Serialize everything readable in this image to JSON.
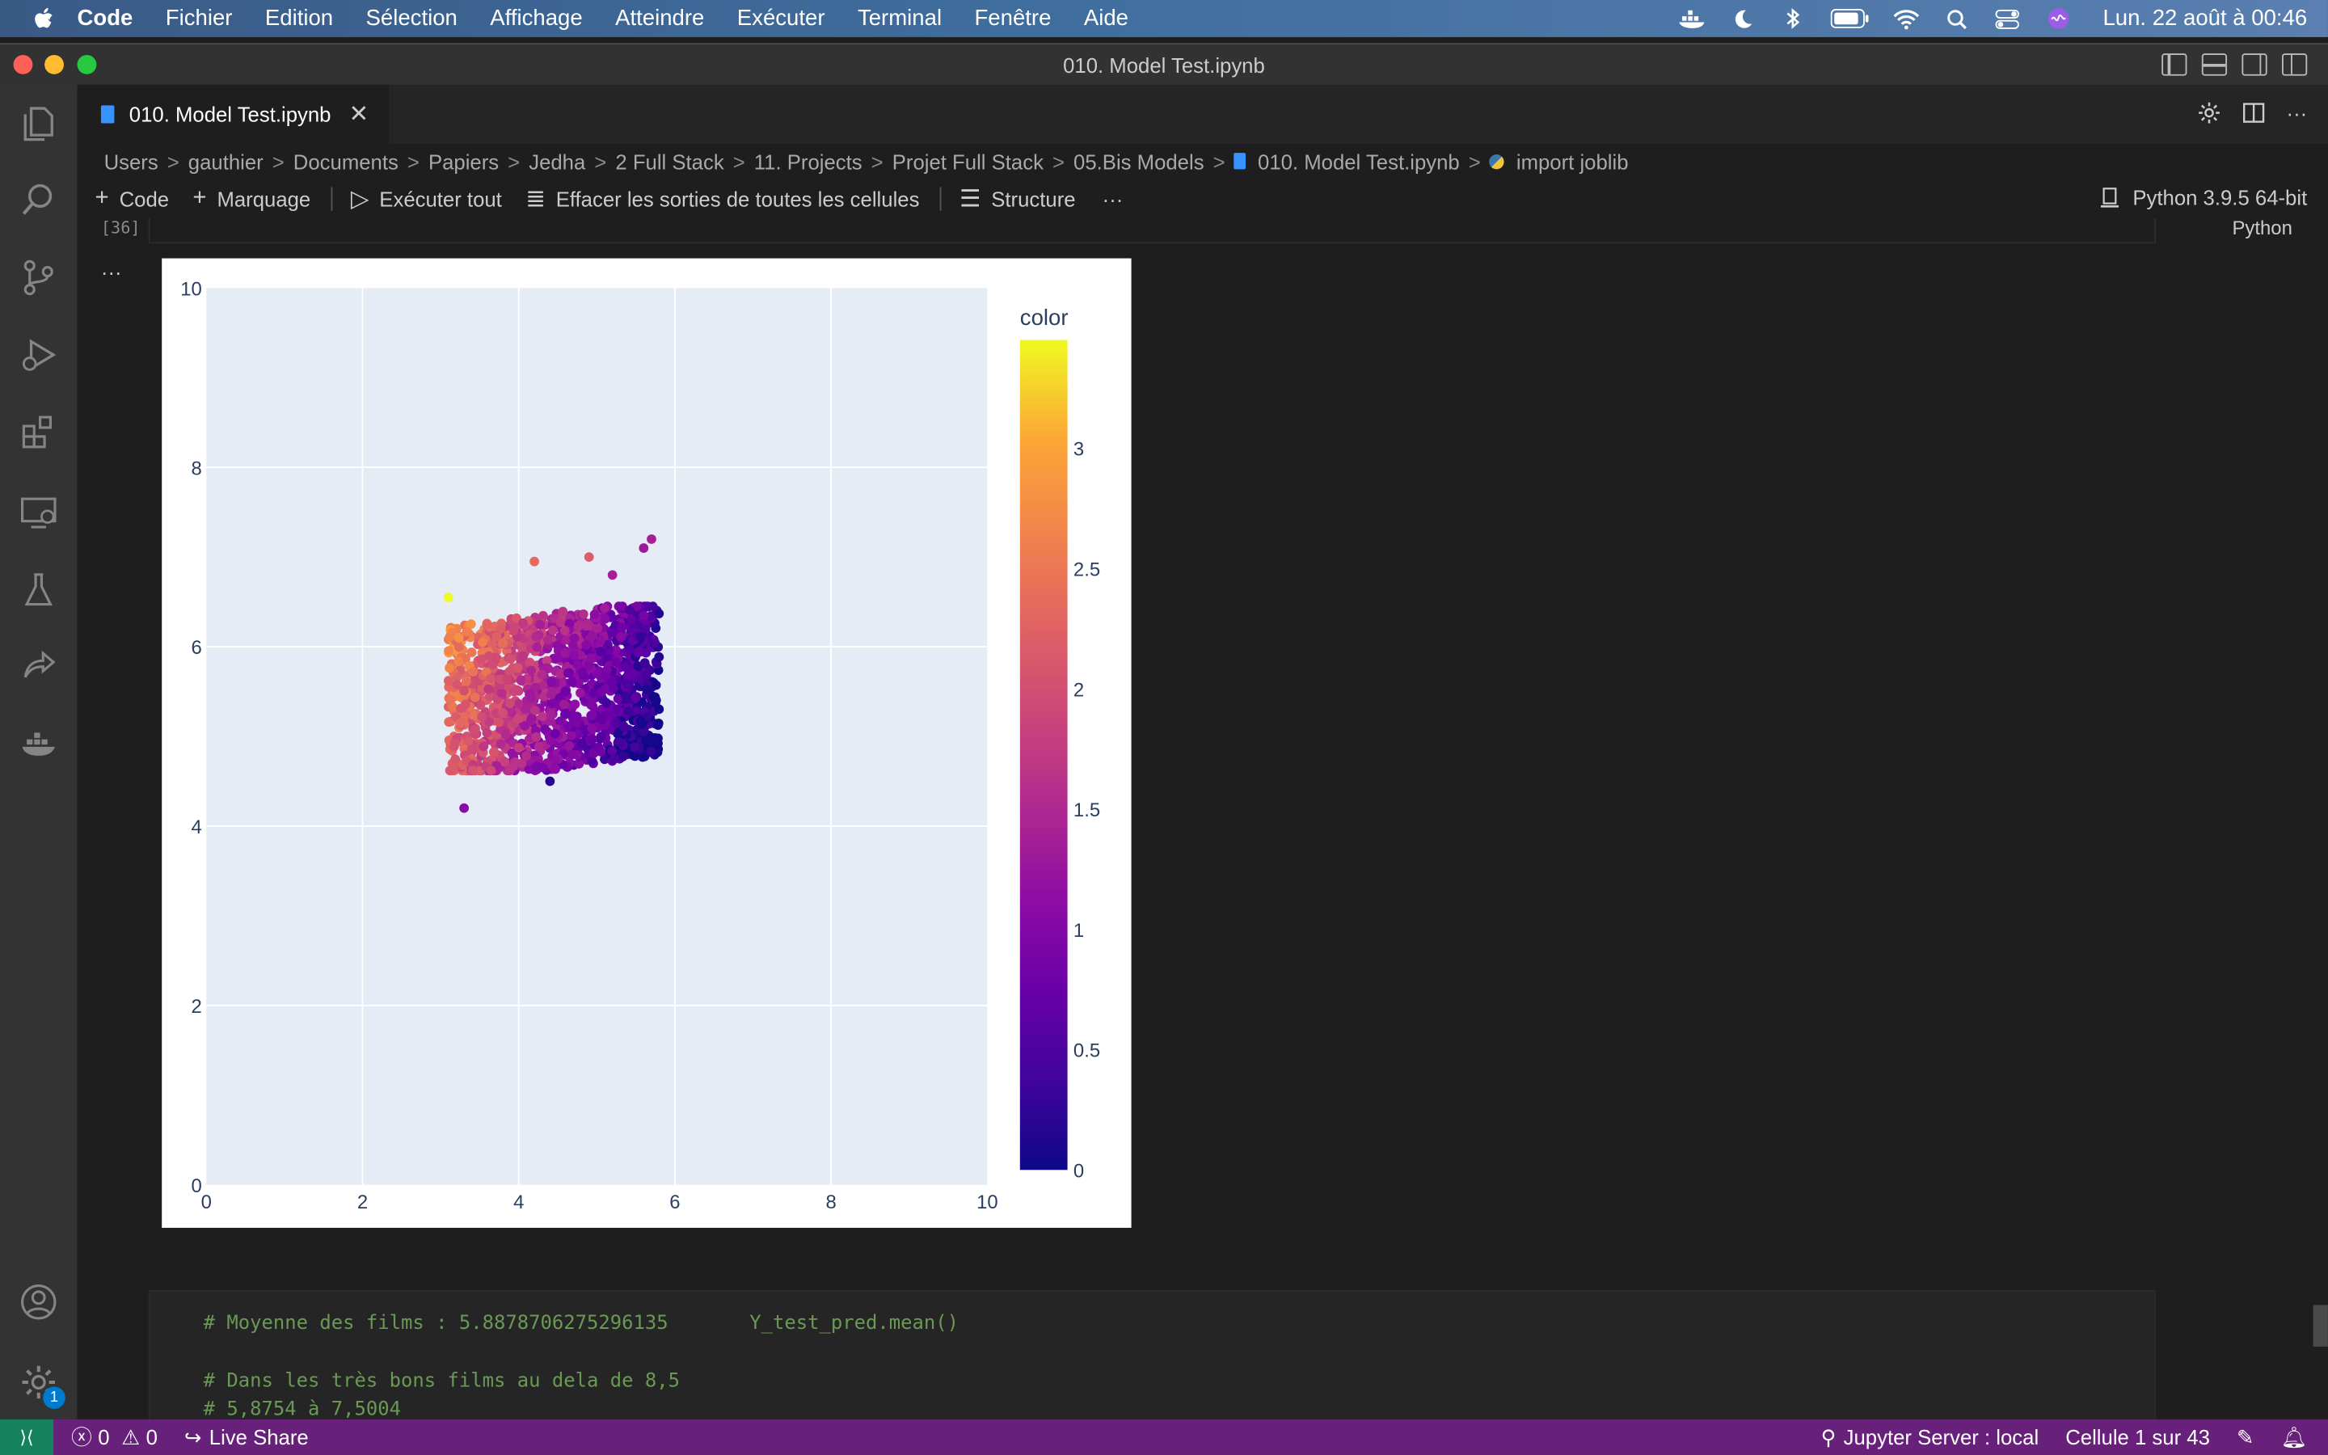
{
  "menubar": {
    "app": "Code",
    "items": [
      "Fichier",
      "Edition",
      "Sélection",
      "Affichage",
      "Atteindre",
      "Exécuter",
      "Terminal",
      "Fenêtre",
      "Aide"
    ],
    "clock": "Lun. 22 août à  00:46"
  },
  "window": {
    "title": "010. Model Test.ipynb"
  },
  "tab": {
    "label": "010. Model Test.ipynb"
  },
  "breadcrumbs": [
    "Users",
    "gauthier",
    "Documents",
    "Papiers",
    "Jedha",
    "2 Full Stack",
    "11. Projects",
    "Projet Full Stack",
    "05.Bis Models",
    "010. Model Test.ipynb",
    "import joblib"
  ],
  "toolbar": {
    "code": "Code",
    "markdown": "Marquage",
    "run_all": "Exécuter tout",
    "clear_outputs": "Effacer les sorties de toutes les cellules",
    "outline": "Structure",
    "more": "···",
    "kernel": "Python 3.9.5 64-bit"
  },
  "cell": {
    "exec_count": "[36]",
    "language": "Python",
    "output_menu": "···"
  },
  "code_lines": [
    "# Moyenne des films : 5.8878706275296135       Y_test_pred.mean()",
    "",
    "# Dans les très bons films au dela de 8,5",
    "# 5,8754 à 7,5004"
  ],
  "statusbar": {
    "errors": "0",
    "warnings": "0",
    "live_share": "Live Share",
    "jupyter": "Jupyter Server : local",
    "cell_position": "Cellule 1 sur 43"
  },
  "activity_badge": "1",
  "chart_data": {
    "type": "scatter",
    "title": "",
    "xlabel": "",
    "ylabel": "",
    "xlim": [
      0,
      10
    ],
    "ylim": [
      0,
      10
    ],
    "x_ticks": [
      0,
      2,
      4,
      6,
      8,
      10
    ],
    "y_ticks": [
      0,
      2,
      4,
      6,
      8,
      10
    ],
    "grid": true,
    "colorbar": {
      "title": "color",
      "range": [
        0,
        3.45
      ],
      "ticks": [
        0,
        0.5,
        1,
        1.5,
        2,
        2.5,
        3
      ],
      "tick_labels": [
        "0",
        "0.5",
        "1",
        "1.5",
        "2",
        "2.5",
        "3"
      ],
      "colorscale": "plasma"
    },
    "cluster": {
      "x_range": [
        3.1,
        5.8
      ],
      "y_range": [
        4.6,
        6.4
      ],
      "note": "dense scatter; color decreases with x"
    },
    "points": [
      {
        "x": 3.1,
        "y": 6.55,
        "c": 3.45
      },
      {
        "x": 4.2,
        "y": 6.95,
        "c": 2.4
      },
      {
        "x": 4.9,
        "y": 7.0,
        "c": 2.2
      },
      {
        "x": 5.7,
        "y": 7.2,
        "c": 1.4
      },
      {
        "x": 3.3,
        "y": 4.2,
        "c": 1.1
      },
      {
        "x": 4.4,
        "y": 4.5,
        "c": 0.2
      },
      {
        "x": 5.6,
        "y": 7.1,
        "c": 1.3
      },
      {
        "x": 5.2,
        "y": 6.8,
        "c": 1.4
      }
    ]
  }
}
